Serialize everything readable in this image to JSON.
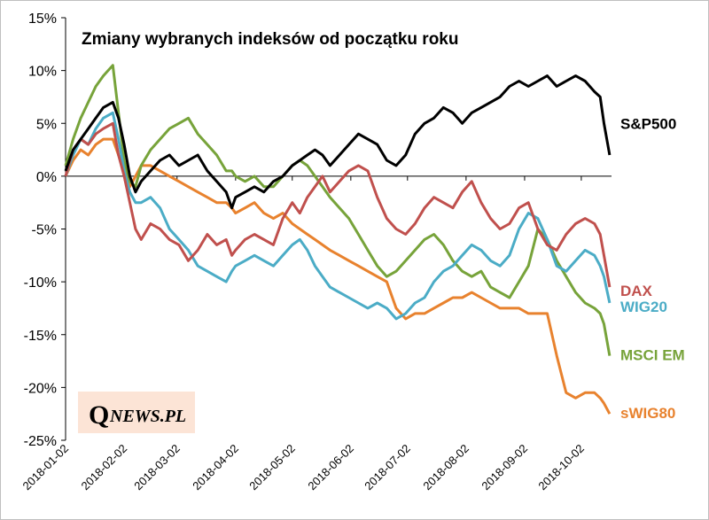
{
  "chart_data": {
    "type": "line",
    "title": "Zmiany wybranych indeksów od początku roku",
    "brand": {
      "q": "Q",
      "rest": "NEWS.PL"
    },
    "ylim": [
      -25,
      15
    ],
    "yticks": [
      15,
      10,
      5,
      0,
      -5,
      -10,
      -15,
      -20,
      -25
    ],
    "ytick_labels": [
      "15%",
      "10%",
      "5%",
      "0%",
      "-5%",
      "-10%",
      "-15%",
      "-20%",
      "-25%"
    ],
    "xlim": [
      0,
      289
    ],
    "xticks": [
      0,
      31,
      59,
      90,
      120,
      151,
      181,
      212,
      243,
      273
    ],
    "xtick_labels": [
      "2018-01-02",
      "2018-02-02",
      "2018-03-02",
      "2018-04-02",
      "2018-05-02",
      "2018-06-02",
      "2018-07-02",
      "2018-08-02",
      "2018-09-02",
      "2018-10-02"
    ],
    "grid": false,
    "series": [
      {
        "name": "S&P500",
        "color": "#000000",
        "x": [
          0,
          4,
          8,
          12,
          16,
          20,
          25,
          28,
          31,
          34,
          37,
          40,
          45,
          50,
          55,
          60,
          65,
          70,
          75,
          80,
          85,
          88,
          90,
          95,
          100,
          105,
          110,
          115,
          120,
          124,
          128,
          132,
          136,
          140,
          145,
          150,
          155,
          160,
          165,
          170,
          175,
          180,
          185,
          190,
          195,
          200,
          205,
          210,
          215,
          220,
          225,
          230,
          235,
          240,
          245,
          250,
          255,
          260,
          265,
          270,
          275,
          280,
          283,
          285,
          288
        ],
        "y": [
          0.5,
          2.5,
          3.5,
          4.5,
          5.5,
          6.5,
          7.0,
          5.5,
          3.0,
          0.0,
          -1.5,
          -0.5,
          0.5,
          1.5,
          2.0,
          1.0,
          1.5,
          2.0,
          0.5,
          -0.5,
          -1.5,
          -3.0,
          -2.0,
          -1.5,
          -1.0,
          -1.5,
          -0.5,
          0.0,
          1.0,
          1.5,
          2.0,
          2.5,
          2.0,
          1.0,
          2.0,
          3.0,
          4.0,
          3.5,
          3.0,
          1.5,
          1.0,
          2.0,
          4.0,
          5.0,
          5.5,
          6.5,
          6.0,
          5.0,
          6.0,
          6.5,
          7.0,
          7.5,
          8.5,
          9.0,
          8.5,
          9.0,
          9.5,
          8.5,
          9.0,
          9.5,
          9.0,
          8.0,
          7.5,
          5.0,
          2.0
        ]
      },
      {
        "name": "DAX",
        "color": "#c0504d",
        "x": [
          0,
          4,
          8,
          12,
          16,
          20,
          25,
          28,
          31,
          34,
          37,
          40,
          45,
          50,
          55,
          60,
          65,
          70,
          75,
          80,
          85,
          88,
          90,
          95,
          100,
          105,
          110,
          115,
          120,
          124,
          128,
          132,
          136,
          140,
          145,
          150,
          155,
          160,
          165,
          170,
          175,
          180,
          185,
          190,
          195,
          200,
          205,
          210,
          215,
          220,
          225,
          230,
          235,
          240,
          245,
          250,
          255,
          260,
          265,
          270,
          275,
          280,
          283,
          285,
          288
        ],
        "y": [
          0.0,
          2.5,
          3.5,
          3.0,
          4.0,
          4.5,
          5.0,
          2.0,
          0.0,
          -2.5,
          -5.0,
          -6.0,
          -4.5,
          -5.0,
          -6.0,
          -6.5,
          -8.0,
          -7.0,
          -5.5,
          -6.5,
          -6.0,
          -7.5,
          -7.0,
          -6.0,
          -5.5,
          -6.0,
          -6.5,
          -4.0,
          -2.5,
          -3.5,
          -2.0,
          -1.0,
          0.0,
          -1.5,
          -0.5,
          0.5,
          1.0,
          0.5,
          -2.0,
          -4.0,
          -5.0,
          -5.5,
          -4.5,
          -3.0,
          -2.0,
          -2.5,
          -3.0,
          -1.5,
          -0.5,
          -2.5,
          -4.0,
          -5.0,
          -4.5,
          -3.0,
          -2.5,
          -5.0,
          -6.5,
          -7.0,
          -5.5,
          -4.5,
          -4.0,
          -4.5,
          -5.5,
          -7.5,
          -10.5
        ]
      },
      {
        "name": "WIG20",
        "color": "#4bacc6",
        "x": [
          0,
          4,
          8,
          12,
          16,
          20,
          25,
          28,
          31,
          34,
          37,
          40,
          45,
          50,
          55,
          60,
          65,
          70,
          75,
          80,
          85,
          88,
          90,
          95,
          100,
          105,
          110,
          115,
          120,
          124,
          128,
          132,
          136,
          140,
          145,
          150,
          155,
          160,
          165,
          170,
          175,
          180,
          185,
          190,
          195,
          200,
          205,
          210,
          215,
          220,
          225,
          230,
          235,
          240,
          245,
          250,
          255,
          260,
          265,
          270,
          275,
          280,
          283,
          285,
          288
        ],
        "y": [
          0.0,
          2.0,
          3.5,
          3.0,
          4.5,
          5.5,
          6.0,
          3.5,
          0.5,
          -1.5,
          -2.5,
          -2.5,
          -2.0,
          -3.0,
          -5.0,
          -6.0,
          -7.0,
          -8.5,
          -9.0,
          -9.5,
          -10.0,
          -9.0,
          -8.5,
          -8.0,
          -7.5,
          -8.0,
          -8.5,
          -7.5,
          -6.5,
          -6.0,
          -7.0,
          -8.5,
          -9.5,
          -10.5,
          -11.0,
          -11.5,
          -12.0,
          -12.5,
          -12.0,
          -12.5,
          -13.5,
          -13.0,
          -12.0,
          -11.5,
          -10.0,
          -9.0,
          -8.5,
          -7.5,
          -6.5,
          -7.0,
          -8.0,
          -8.5,
          -7.5,
          -5.0,
          -3.5,
          -4.0,
          -6.0,
          -8.5,
          -9.0,
          -8.0,
          -7.0,
          -7.5,
          -8.5,
          -9.5,
          -12.0
        ]
      },
      {
        "name": "MSCI EM",
        "color": "#77a33a",
        "x": [
          0,
          4,
          8,
          12,
          16,
          20,
          25,
          28,
          31,
          34,
          37,
          40,
          45,
          50,
          55,
          60,
          65,
          70,
          75,
          80,
          85,
          88,
          90,
          95,
          100,
          105,
          110,
          115,
          120,
          124,
          128,
          132,
          136,
          140,
          145,
          150,
          155,
          160,
          165,
          170,
          175,
          180,
          185,
          190,
          195,
          200,
          205,
          210,
          215,
          220,
          225,
          230,
          235,
          240,
          245,
          250,
          255,
          260,
          265,
          270,
          275,
          280,
          283,
          285,
          288
        ],
        "y": [
          1.0,
          3.5,
          5.5,
          7.0,
          8.5,
          9.5,
          10.5,
          6.0,
          1.5,
          -0.5,
          -1.0,
          1.0,
          2.5,
          3.5,
          4.5,
          5.0,
          5.5,
          4.0,
          3.0,
          2.0,
          0.5,
          0.5,
          0.0,
          -0.5,
          0.0,
          -1.0,
          -1.0,
          0.0,
          1.0,
          1.5,
          1.0,
          0.0,
          -1.0,
          -2.0,
          -3.0,
          -4.0,
          -5.5,
          -7.0,
          -8.5,
          -9.5,
          -9.0,
          -8.0,
          -7.0,
          -6.0,
          -5.5,
          -6.5,
          -8.0,
          -9.0,
          -9.5,
          -9.0,
          -10.5,
          -11.0,
          -11.5,
          -10.0,
          -8.5,
          -5.0,
          -6.0,
          -8.0,
          -9.5,
          -11.0,
          -12.0,
          -12.5,
          -13.0,
          -14.0,
          -17.0
        ]
      },
      {
        "name": "sWIG80",
        "color": "#e8822e",
        "x": [
          0,
          4,
          8,
          12,
          16,
          20,
          25,
          28,
          31,
          34,
          37,
          40,
          45,
          50,
          55,
          60,
          65,
          70,
          75,
          80,
          85,
          88,
          90,
          95,
          100,
          105,
          110,
          115,
          120,
          124,
          128,
          132,
          136,
          140,
          145,
          150,
          155,
          160,
          165,
          170,
          175,
          180,
          185,
          190,
          195,
          200,
          205,
          210,
          215,
          220,
          225,
          230,
          235,
          240,
          245,
          250,
          255,
          260,
          265,
          270,
          275,
          280,
          283,
          285,
          288
        ],
        "y": [
          0.0,
          1.5,
          2.5,
          2.0,
          3.0,
          3.5,
          3.5,
          2.0,
          0.5,
          -1.0,
          0.0,
          1.0,
          1.0,
          0.5,
          0.0,
          -0.5,
          -1.0,
          -1.5,
          -2.0,
          -2.5,
          -2.5,
          -3.0,
          -3.5,
          -3.0,
          -2.5,
          -3.5,
          -4.0,
          -3.5,
          -4.5,
          -5.0,
          -5.5,
          -6.0,
          -6.5,
          -7.0,
          -7.5,
          -8.0,
          -8.5,
          -9.0,
          -9.5,
          -10.0,
          -12.5,
          -13.5,
          -13.0,
          -13.0,
          -12.5,
          -12.0,
          -11.5,
          -11.5,
          -11.0,
          -11.5,
          -12.0,
          -12.5,
          -12.5,
          -12.5,
          -13.0,
          -13.0,
          -13.0,
          -17.0,
          -20.5,
          -21.0,
          -20.5,
          -20.5,
          -21.0,
          -21.5,
          -22.5
        ]
      }
    ]
  }
}
